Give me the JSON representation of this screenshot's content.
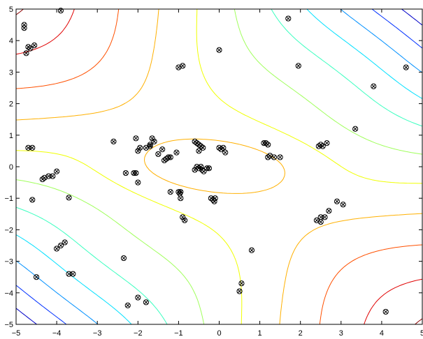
{
  "chart_data": {
    "type": "contour-scatter",
    "title": "",
    "xlabel": "",
    "ylabel": "",
    "xlim": [
      -5,
      5
    ],
    "ylim": [
      -5,
      5
    ],
    "x_ticks": [
      -5,
      -4,
      -3,
      -2,
      -1,
      0,
      1,
      2,
      3,
      4,
      5
    ],
    "y_ticks": [
      -5,
      -4,
      -3,
      -2,
      -1,
      0,
      1,
      2,
      3,
      4,
      5
    ],
    "grid": false,
    "contour_colors": [
      "#00007f",
      "#0000c8",
      "#0030ff",
      "#0090ff",
      "#00e0ff",
      "#3cffc0",
      "#a0ff5c",
      "#f0ff00",
      "#ffb000",
      "#ff5000",
      "#e00000",
      "#8b0000"
    ],
    "points": [
      [
        -4.8,
        4.5
      ],
      [
        -4.8,
        4.4
      ],
      [
        -3.9,
        4.95
      ],
      [
        -4.7,
        3.8
      ],
      [
        -4.65,
        3.75
      ],
      [
        -4.55,
        3.85
      ],
      [
        -4.75,
        3.6
      ],
      [
        -4.7,
        0.6
      ],
      [
        -4.6,
        0.6
      ],
      [
        -4.0,
        -0.15
      ],
      [
        -4.1,
        -0.3
      ],
      [
        -4.2,
        -0.3
      ],
      [
        -4.3,
        -0.35
      ],
      [
        -4.35,
        -0.4
      ],
      [
        -4.6,
        -1.05
      ],
      [
        -3.7,
        -0.98
      ],
      [
        -3.8,
        -2.4
      ],
      [
        -3.9,
        -2.5
      ],
      [
        -4.0,
        -2.6
      ],
      [
        -3.7,
        -3.4
      ],
      [
        -3.6,
        -3.4
      ],
      [
        -4.5,
        -3.5
      ],
      [
        -2.6,
        0.8
      ],
      [
        -2.3,
        -0.2
      ],
      [
        -2.1,
        -0.2
      ],
      [
        -2.05,
        -0.2
      ],
      [
        -2.05,
        0.9
      ],
      [
        -2.0,
        -0.5
      ],
      [
        -1.95,
        0.6
      ],
      [
        -2.0,
        0.5
      ],
      [
        -1.8,
        0.6
      ],
      [
        -1.7,
        0.65
      ],
      [
        -1.6,
        0.8
      ],
      [
        -1.65,
        0.9
      ],
      [
        -1.7,
        0.7
      ],
      [
        -1.5,
        0.4
      ],
      [
        -1.4,
        0.55
      ],
      [
        -1.35,
        0.2
      ],
      [
        -1.3,
        0.25
      ],
      [
        -1.25,
        0.3
      ],
      [
        -1.2,
        0.3
      ],
      [
        -1.05,
        0.45
      ],
      [
        -1.2,
        -0.8
      ],
      [
        -1.0,
        -0.8
      ],
      [
        -0.95,
        -0.8
      ],
      [
        -0.97,
        -0.85
      ],
      [
        -0.95,
        -1.0
      ],
      [
        -0.9,
        -1.6
      ],
      [
        -0.85,
        -1.7
      ],
      [
        -0.6,
        0.8
      ],
      [
        -0.55,
        0.75
      ],
      [
        -0.5,
        0.7
      ],
      [
        -0.45,
        0.65
      ],
      [
        -0.4,
        0.6
      ],
      [
        -0.5,
        0.5
      ],
      [
        -0.55,
        0.0
      ],
      [
        -0.5,
        -0.05
      ],
      [
        -0.45,
        0.0
      ],
      [
        -0.42,
        -0.1
      ],
      [
        -0.38,
        -0.15
      ],
      [
        -0.6,
        -0.1
      ],
      [
        -0.3,
        -0.05
      ],
      [
        -0.25,
        -0.05
      ],
      [
        -0.2,
        -1.0
      ],
      [
        -0.15,
        -1.05
      ],
      [
        -0.1,
        -1.0
      ],
      [
        -0.12,
        -1.1
      ],
      [
        0.0,
        0.6
      ],
      [
        0.05,
        0.55
      ],
      [
        0.1,
        0.6
      ],
      [
        0.15,
        0.45
      ],
      [
        -1.0,
        3.15
      ],
      [
        -0.9,
        3.2
      ],
      [
        0.0,
        3.7
      ],
      [
        1.1,
        0.75
      ],
      [
        1.15,
        0.75
      ],
      [
        1.2,
        0.7
      ],
      [
        1.2,
        0.3
      ],
      [
        1.25,
        0.35
      ],
      [
        1.35,
        0.3
      ],
      [
        1.5,
        0.3
      ],
      [
        2.45,
        0.65
      ],
      [
        2.5,
        0.7
      ],
      [
        2.55,
        0.65
      ],
      [
        2.65,
        0.75
      ],
      [
        1.7,
        4.7
      ],
      [
        1.95,
        3.2
      ],
      [
        3.35,
        1.2
      ],
      [
        3.8,
        2.55
      ],
      [
        4.6,
        3.15
      ],
      [
        2.5,
        -1.6
      ],
      [
        2.4,
        -1.7
      ],
      [
        2.6,
        -1.6
      ],
      [
        2.7,
        -1.4
      ],
      [
        2.9,
        -1.1
      ],
      [
        3.05,
        -1.2
      ],
      [
        2.5,
        -1.75
      ],
      [
        -2.35,
        -2.9
      ],
      [
        0.8,
        -2.65
      ],
      [
        0.55,
        -3.7
      ],
      [
        0.5,
        -3.95
      ],
      [
        -2.0,
        -4.15
      ],
      [
        -2.25,
        -4.4
      ],
      [
        -1.8,
        -4.3
      ],
      [
        4.1,
        -4.6
      ]
    ]
  }
}
